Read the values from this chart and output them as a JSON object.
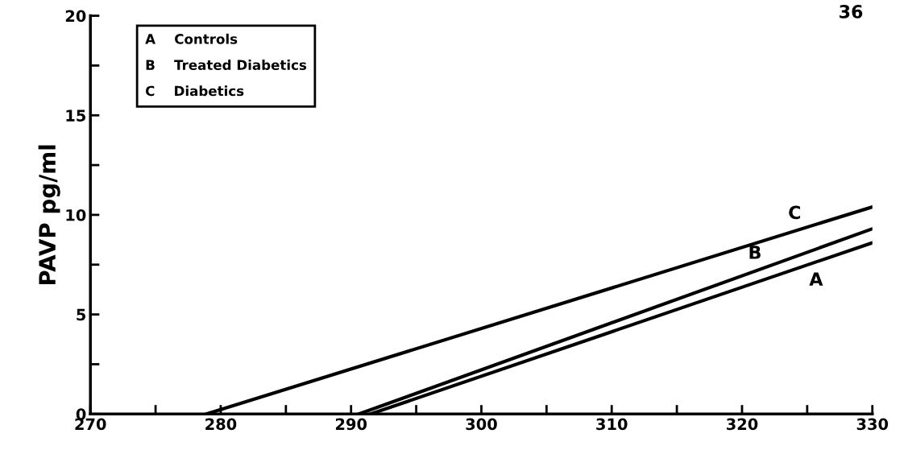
{
  "chart_data": {
    "type": "line",
    "ylabel": "PAVP pg/ml",
    "series": [
      {
        "name": "Controls",
        "color": "#000000",
        "x": [
          291.5,
          330
        ],
        "values": [
          0,
          8.6
        ]
      },
      {
        "name": "Treated Diabetics",
        "color": "#000000",
        "x": [
          290.6,
          330
        ],
        "values": [
          0,
          9.3
        ]
      },
      {
        "name": "Diabetics",
        "color": "#000000",
        "x": [
          278.9,
          330
        ],
        "values": [
          0,
          10.4
        ]
      }
    ],
    "annotations": [
      "A",
      "B",
      "C",
      "36"
    ],
    "xlim": [
      270,
      330
    ],
    "xticks": [
      270,
      {
        "value": 275,
        "label": null
      },
      280,
      {
        "value": 285,
        "label": null
      },
      290,
      {
        "value": 295,
        "label": null
      },
      300,
      {
        "value": 305,
        "label": null
      },
      310,
      {
        "value": 315,
        "label": null
      },
      320,
      {
        "value": 325,
        "label": null
      },
      330
    ],
    "ylim": [
      0,
      20
    ],
    "yticks": [
      0,
      {
        "value": 2.5,
        "label": null
      },
      5,
      {
        "value": 7.5,
        "label": null
      },
      10,
      {
        "value": 12.5,
        "label": null
      },
      15,
      {
        "value": 17.5,
        "label": null
      },
      20
    ],
    "grid": false,
    "marker": "none",
    "line_style": "solid"
  }
}
